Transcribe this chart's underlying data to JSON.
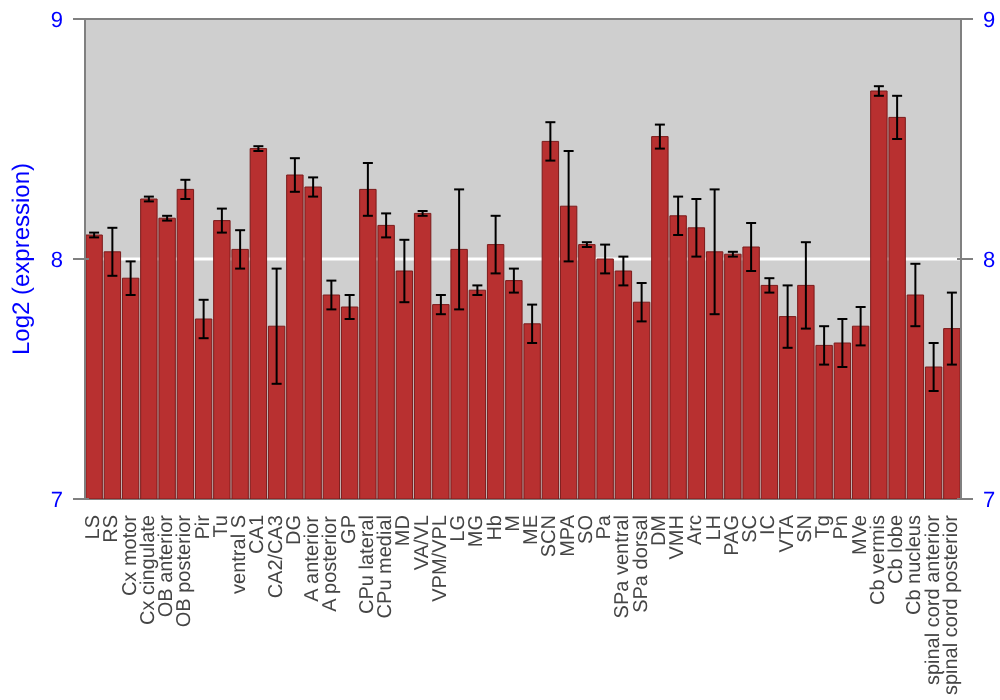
{
  "chart_data": {
    "type": "bar",
    "ylabel": "Log2 (expression)",
    "categories": [
      "LS",
      "RS",
      "Cx motor",
      "Cx cingulate",
      "OB anterior",
      "OB posterior",
      "Pir",
      "Tu",
      "ventral S",
      "CA1",
      "CA2/CA3",
      "DG",
      "A anterior",
      "A posterior",
      "GP",
      "CPu lateral",
      "CPu medial",
      "MD",
      "VA/VL",
      "VPM/VPL",
      "LG",
      "MG",
      "Hb",
      "M",
      "ME",
      "SCN",
      "MPA",
      "SO",
      "Pa",
      "SPa ventral",
      "SPa dorsal",
      "DM",
      "VMH",
      "Arc",
      "LH",
      "PAG",
      "SC",
      "IC",
      "VTA",
      "SN",
      "Tg",
      "Pn",
      "MVe",
      "Cb vermis",
      "Cb lobe",
      "Cb nucleus",
      "spinal cord anterior",
      "spinal cord posterior"
    ],
    "values": [
      8.1,
      8.03,
      7.92,
      8.25,
      8.17,
      8.29,
      7.75,
      8.16,
      8.04,
      8.46,
      7.72,
      8.35,
      8.3,
      7.85,
      7.8,
      8.29,
      8.14,
      7.95,
      8.19,
      7.81,
      8.04,
      7.87,
      8.06,
      7.91,
      7.73,
      8.49,
      8.22,
      8.06,
      8.0,
      7.95,
      7.82,
      8.51,
      8.18,
      8.13,
      8.03,
      8.02,
      8.05,
      7.89,
      7.76,
      7.89,
      7.64,
      7.65,
      7.72,
      8.7,
      8.59,
      7.85,
      7.55,
      7.71
    ],
    "errors": [
      0.01,
      0.1,
      0.07,
      0.01,
      0.01,
      0.04,
      0.08,
      0.05,
      0.08,
      0.01,
      0.24,
      0.07,
      0.04,
      0.06,
      0.05,
      0.11,
      0.05,
      0.13,
      0.01,
      0.04,
      0.25,
      0.02,
      0.12,
      0.05,
      0.08,
      0.08,
      0.23,
      0.01,
      0.06,
      0.06,
      0.08,
      0.05,
      0.08,
      0.12,
      0.26,
      0.01,
      0.1,
      0.03,
      0.13,
      0.18,
      0.08,
      0.1,
      0.08,
      0.02,
      0.09,
      0.13,
      0.1,
      0.15
    ],
    "color": "#b83030",
    "ylim": [
      7,
      9
    ],
    "yticks": [
      7,
      8,
      9
    ],
    "y2lim": [
      7,
      9
    ],
    "y2ticks": [
      7,
      8,
      9
    ],
    "grid": "y"
  }
}
